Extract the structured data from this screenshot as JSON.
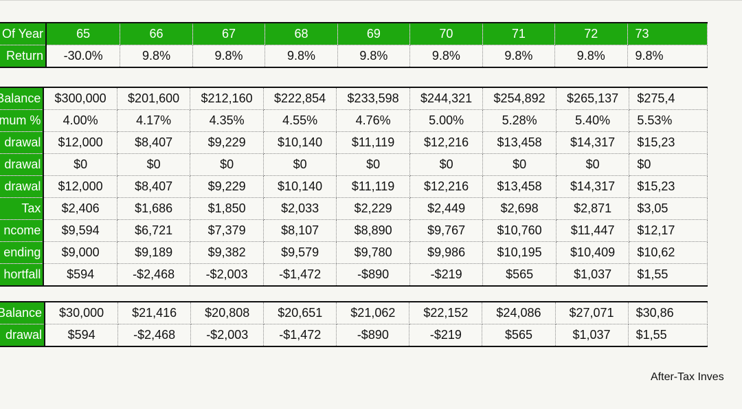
{
  "header": {
    "label": "Of Year",
    "ages": [
      "65",
      "66",
      "67",
      "68",
      "69",
      "70",
      "71",
      "72",
      "73"
    ]
  },
  "returns": {
    "label": "Return",
    "values": [
      "-30.0%",
      "9.8%",
      "9.8%",
      "9.8%",
      "9.8%",
      "9.8%",
      "9.8%",
      "9.8%",
      "9.8%"
    ]
  },
  "main": [
    {
      "label": "Balance",
      "values": [
        "$300,000",
        "$201,600",
        "$212,160",
        "$222,854",
        "$233,598",
        "$244,321",
        "$254,892",
        "$265,137",
        "$275,4"
      ]
    },
    {
      "label": "mum %",
      "values": [
        "4.00%",
        "4.17%",
        "4.35%",
        "4.55%",
        "4.76%",
        "5.00%",
        "5.28%",
        "5.40%",
        "5.53%"
      ]
    },
    {
      "label": "drawal",
      "values": [
        "$12,000",
        "$8,407",
        "$9,229",
        "$10,140",
        "$11,119",
        "$12,216",
        "$13,458",
        "$14,317",
        "$15,23"
      ]
    },
    {
      "label": "drawal",
      "values": [
        "$0",
        "$0",
        "$0",
        "$0",
        "$0",
        "$0",
        "$0",
        "$0",
        "$0"
      ]
    },
    {
      "label": "drawal",
      "values": [
        "$12,000",
        "$8,407",
        "$9,229",
        "$10,140",
        "$11,119",
        "$12,216",
        "$13,458",
        "$14,317",
        "$15,23"
      ]
    },
    {
      "label": "Tax",
      "values": [
        "$2,406",
        "$1,686",
        "$1,850",
        "$2,033",
        "$2,229",
        "$2,449",
        "$2,698",
        "$2,871",
        "$3,05"
      ]
    },
    {
      "label": "ncome",
      "values": [
        "$9,594",
        "$6,721",
        "$7,379",
        "$8,107",
        "$8,890",
        "$9,767",
        "$10,760",
        "$11,447",
        "$12,17"
      ]
    },
    {
      "label": "ending",
      "values": [
        "$9,000",
        "$9,189",
        "$9,382",
        "$9,579",
        "$9,780",
        "$9,986",
        "$10,195",
        "$10,409",
        "$10,62"
      ]
    },
    {
      "label": "hortfall",
      "values": [
        "$594",
        "-$2,468",
        "-$2,003",
        "-$1,472",
        "-$890",
        "-$219",
        "$565",
        "$1,037",
        "$1,55"
      ]
    }
  ],
  "aftertax": [
    {
      "label": "Balance",
      "values": [
        "$30,000",
        "$21,416",
        "$20,808",
        "$20,651",
        "$21,062",
        "$22,152",
        "$24,086",
        "$27,071",
        "$30,86"
      ]
    },
    {
      "label": "drawal",
      "values": [
        "$594",
        "-$2,468",
        "-$2,003",
        "-$1,472",
        "-$890",
        "-$219",
        "$565",
        "$1,037",
        "$1,55"
      ]
    }
  ],
  "footer": {
    "text": "After-Tax Inves"
  },
  "colors": {
    "header_green": "#1ea80f",
    "background": "#f6f6f2"
  }
}
